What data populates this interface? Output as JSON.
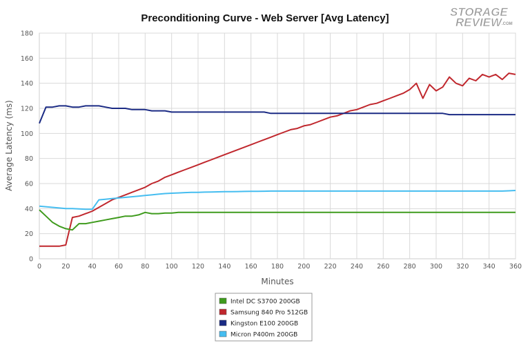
{
  "chart_data": {
    "type": "line",
    "title": "Preconditioning Curve - Web Server [Avg Latency]",
    "xlabel": "Minutes",
    "ylabel": "Average Latency (ms)",
    "xlim": [
      0,
      360
    ],
    "ylim": [
      0,
      180
    ],
    "x_ticks": [
      "0",
      "20",
      "40",
      "60",
      "80",
      "100",
      "120",
      "140",
      "160",
      "180",
      "200",
      "220",
      "240",
      "260",
      "280",
      "300",
      "320",
      "340",
      "360"
    ],
    "y_ticks": [
      "0",
      "20",
      "40",
      "60",
      "80",
      "100",
      "120",
      "140",
      "160",
      "180"
    ],
    "grid": true,
    "legend_position": "bottom-center",
    "x": [
      0,
      5,
      10,
      15,
      20,
      25,
      30,
      35,
      40,
      45,
      50,
      55,
      60,
      65,
      70,
      75,
      80,
      85,
      90,
      95,
      100,
      105,
      110,
      115,
      120,
      125,
      130,
      135,
      140,
      145,
      150,
      155,
      160,
      165,
      170,
      175,
      180,
      185,
      190,
      195,
      200,
      205,
      210,
      215,
      220,
      225,
      230,
      235,
      240,
      245,
      250,
      255,
      260,
      265,
      270,
      275,
      280,
      285,
      290,
      295,
      300,
      305,
      310,
      315,
      320,
      325,
      330,
      335,
      340,
      345,
      350,
      355,
      360
    ],
    "series": [
      {
        "name": "Intel DC S3700 200GB",
        "color": "#3f9b1d",
        "values": [
          39,
          34,
          29,
          26,
          24,
          23,
          28,
          28,
          29,
          30,
          31,
          32,
          33,
          34,
          34,
          35,
          37,
          36,
          36,
          36.5,
          36.5,
          37,
          37,
          37,
          37,
          37,
          37,
          37,
          37,
          37,
          37,
          37,
          37,
          37,
          37,
          37,
          37,
          37,
          37,
          37,
          37,
          37,
          37,
          37,
          37,
          37,
          37,
          37,
          37,
          37,
          37,
          37,
          37,
          37,
          37,
          37,
          37,
          37,
          37,
          37,
          37,
          37,
          37,
          37,
          37,
          37,
          37,
          37,
          37,
          37,
          37,
          37,
          37
        ]
      },
      {
        "name": "Samsung 840 Pro 512GB",
        "color": "#c0272d",
        "values": [
          10,
          10,
          10,
          10,
          11,
          33,
          34,
          36,
          38,
          41,
          44,
          47,
          49,
          51,
          53,
          55,
          57,
          60,
          62,
          65,
          67,
          69,
          71,
          73,
          75,
          77,
          79,
          81,
          83,
          85,
          87,
          89,
          91,
          93,
          95,
          97,
          99,
          101,
          103,
          104,
          106,
          107,
          109,
          111,
          113,
          114,
          116,
          118,
          119,
          121,
          123,
          124,
          126,
          128,
          130,
          132,
          135,
          140,
          128,
          139,
          134,
          137,
          145,
          140,
          138,
          144,
          142,
          147,
          145,
          147,
          143,
          148,
          147
        ]
      },
      {
        "name": "Kingston E100 200GB",
        "color": "#1a2a84",
        "values": [
          108,
          121,
          121,
          122,
          122,
          121,
          121,
          122,
          122,
          122,
          121,
          120,
          120,
          120,
          119,
          119,
          119,
          118,
          118,
          118,
          117,
          117,
          117,
          117,
          117,
          117,
          117,
          117,
          117,
          117,
          117,
          117,
          117,
          117,
          117,
          116,
          116,
          116,
          116,
          116,
          116,
          116,
          116,
          116,
          116,
          116,
          116,
          116,
          116,
          116,
          116,
          116,
          116,
          116,
          116,
          116,
          116,
          116,
          116,
          116,
          116,
          116,
          115,
          115,
          115,
          115,
          115,
          115,
          115,
          115,
          115,
          115,
          115
        ]
      },
      {
        "name": "Micron P400m 200GB",
        "color": "#45bdf0",
        "values": [
          42,
          41.5,
          41,
          40.5,
          40,
          40,
          39.8,
          39.5,
          39.5,
          47,
          47.5,
          48,
          48.5,
          49,
          49.5,
          50,
          50.5,
          51,
          51.5,
          52,
          52.3,
          52.5,
          52.8,
          53,
          53,
          53.2,
          53.3,
          53.4,
          53.5,
          53.5,
          53.6,
          53.7,
          53.8,
          53.8,
          53.9,
          54,
          54,
          54,
          54,
          54,
          54,
          54,
          54,
          54,
          54,
          54,
          54,
          54,
          54,
          54,
          54,
          54,
          54,
          54,
          54,
          54,
          54,
          54,
          54,
          54,
          54,
          54,
          54,
          54,
          54,
          54,
          54,
          54,
          54,
          54,
          54,
          54.2,
          54.5
        ]
      }
    ]
  },
  "logo": {
    "line1": "STORAGE",
    "line2": "REVIEW",
    "suffix": ".COM"
  }
}
